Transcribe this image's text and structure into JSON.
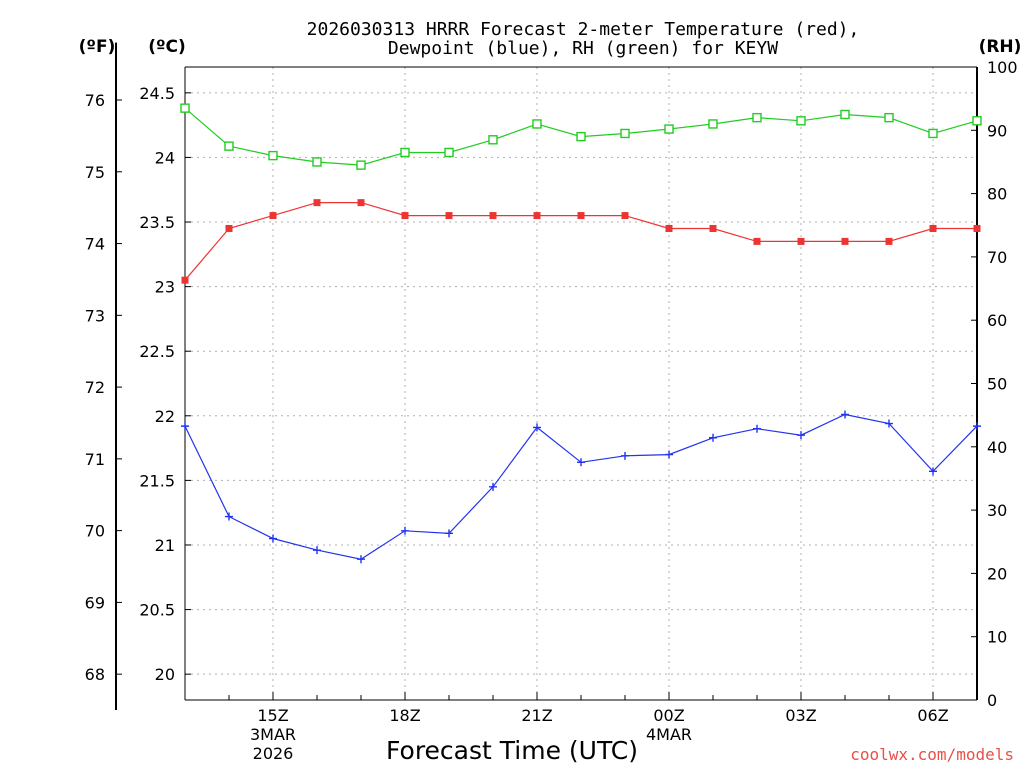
{
  "chart_data": {
    "type": "line",
    "title_line1": "2026030313 HRRR Forecast 2-meter Temperature (red),",
    "title_line2": "Dewpoint (blue), RH (green) for KEYW",
    "xlabel": "Forecast Time (UTC)",
    "credit": "coolwx.com/models",
    "unit_labels": {
      "fahrenheit": "(ºF)",
      "celsius": "(ºC)",
      "rh": "(RH)"
    },
    "x_hours": [
      13,
      14,
      15,
      16,
      17,
      18,
      19,
      20,
      21,
      22,
      23,
      24,
      25,
      26,
      27,
      28,
      29,
      30,
      31
    ],
    "x_ticks": [
      {
        "hour": 15,
        "label": "15Z",
        "sub1": "3MAR",
        "sub2": "2026"
      },
      {
        "hour": 18,
        "label": "18Z",
        "sub1": "",
        "sub2": ""
      },
      {
        "hour": 21,
        "label": "21Z",
        "sub1": "",
        "sub2": ""
      },
      {
        "hour": 24,
        "label": "00Z",
        "sub1": "4MAR",
        "sub2": ""
      },
      {
        "hour": 27,
        "label": "03Z",
        "sub1": "",
        "sub2": ""
      },
      {
        "hour": 30,
        "label": "06Z",
        "sub1": "",
        "sub2": ""
      }
    ],
    "celsius_axis": {
      "range": [
        19.8,
        24.7
      ],
      "ticks": [
        20,
        20.5,
        21,
        21.5,
        22,
        22.5,
        23,
        23.5,
        24,
        24.5
      ]
    },
    "fahrenheit_axis": {
      "ticks": [
        68,
        69,
        70,
        71,
        72,
        73,
        74,
        75,
        76
      ]
    },
    "rh_axis": {
      "range": [
        0,
        100
      ],
      "ticks": [
        0,
        10,
        20,
        30,
        40,
        50,
        60,
        70,
        80,
        90,
        100
      ]
    },
    "series": [
      {
        "name": "Temperature",
        "units": "C",
        "color": "#ee3333",
        "marker": "filled-square",
        "values": [
          23.05,
          23.45,
          23.55,
          23.65,
          23.65,
          23.55,
          23.55,
          23.55,
          23.55,
          23.55,
          23.55,
          23.45,
          23.45,
          23.35,
          23.35,
          23.35,
          23.35,
          23.45,
          23.45
        ]
      },
      {
        "name": "Dewpoint",
        "units": "C",
        "color": "#2233ee",
        "marker": "plus",
        "values": [
          21.92,
          21.22,
          21.05,
          20.96,
          20.89,
          21.11,
          21.09,
          21.45,
          21.91,
          21.64,
          21.69,
          21.7,
          21.83,
          21.9,
          21.85,
          22.01,
          21.94,
          21.57,
          21.92
        ]
      },
      {
        "name": "RH",
        "units": "%",
        "color": "#22cc22",
        "marker": "open-square",
        "values": [
          93.5,
          87.5,
          86.0,
          85.0,
          84.5,
          86.5,
          86.5,
          88.5,
          91.0,
          89.0,
          89.5,
          90.2,
          91.0,
          92.0,
          91.5,
          92.5,
          92.0,
          89.5,
          91.5
        ]
      }
    ]
  }
}
